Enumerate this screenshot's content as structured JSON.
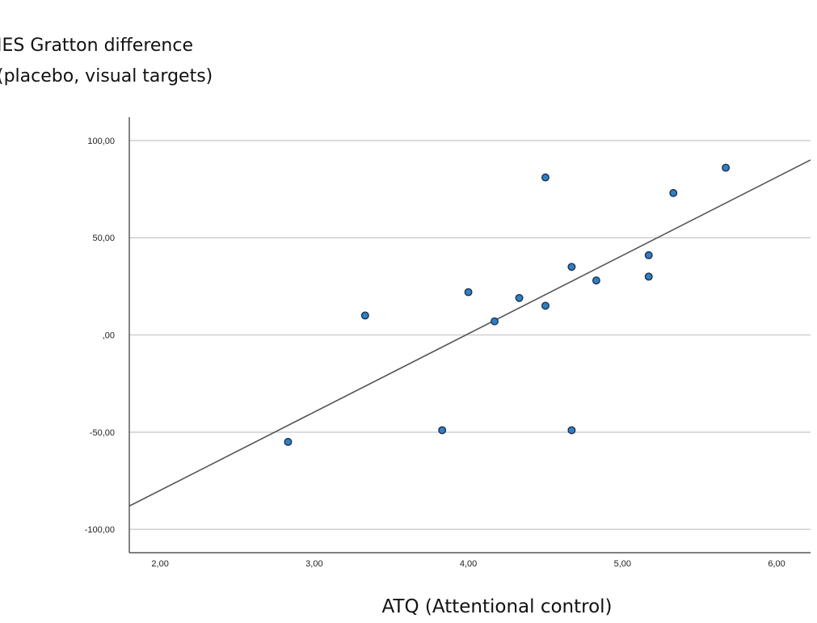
{
  "chart_data": {
    "type": "scatter",
    "ylabel_lines": [
      "IES Gratton difference",
      "(placebo, visual targets)"
    ],
    "xlabel": "ATQ (Attentional control)",
    "xlim": [
      1.8,
      6.22
    ],
    "ylim": [
      -112,
      112
    ],
    "x_ticks": [
      2,
      3,
      4,
      5,
      6
    ],
    "x_tick_labels": [
      "2,00",
      "3,00",
      "4,00",
      "5,00",
      "6,00"
    ],
    "y_ticks": [
      100,
      50,
      0,
      -50,
      -100
    ],
    "y_tick_labels": [
      "100,00",
      "50,00",
      ",00",
      "-50,00",
      "-100,00"
    ],
    "grid": "horizontal",
    "point_color": "#2f7fc1",
    "point_edge_color": "#1a2a44",
    "line_color": "#555555",
    "points": [
      {
        "x": 2.83,
        "y": -55
      },
      {
        "x": 3.33,
        "y": 10
      },
      {
        "x": 3.83,
        "y": -49
      },
      {
        "x": 4.0,
        "y": 22
      },
      {
        "x": 4.17,
        "y": 7
      },
      {
        "x": 4.33,
        "y": 19
      },
      {
        "x": 4.5,
        "y": 81
      },
      {
        "x": 4.5,
        "y": 15
      },
      {
        "x": 4.67,
        "y": 35
      },
      {
        "x": 4.67,
        "y": -49
      },
      {
        "x": 4.83,
        "y": 28
      },
      {
        "x": 5.17,
        "y": 41
      },
      {
        "x": 5.17,
        "y": 30
      },
      {
        "x": 5.33,
        "y": 73
      },
      {
        "x": 5.67,
        "y": 86
      }
    ],
    "fit_line": {
      "x": [
        1.8,
        6.22
      ],
      "y": [
        -88,
        90
      ]
    }
  }
}
